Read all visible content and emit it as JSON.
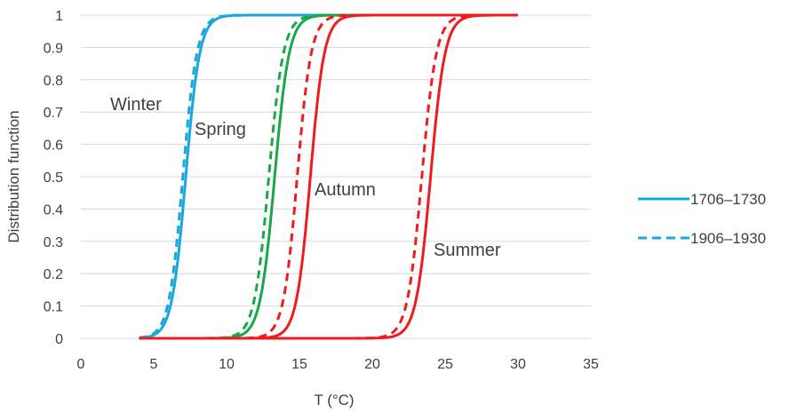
{
  "chart_data": {
    "type": "line",
    "title": "",
    "xlabel": "T (°C)",
    "ylabel": "Distribution function",
    "xlim": [
      0,
      35
    ],
    "ylim": [
      0,
      1
    ],
    "x_ticks": [
      "0",
      "5",
      "10",
      "15",
      "20",
      "25",
      "30",
      "35"
    ],
    "y_ticks": [
      "0",
      "0.1",
      "0.2",
      "0.3",
      "0.4",
      "0.5",
      "0.6",
      "0.7",
      "0.8",
      "0.9",
      "1"
    ],
    "grid": "horizontal",
    "legend_position": "right",
    "legend": [
      {
        "label": "1706–1730",
        "style": "solid"
      },
      {
        "label": "1906–1930",
        "style": "dashed"
      }
    ],
    "season_labels": [
      "Winter",
      "Spring",
      "Autumn",
      "Summer"
    ],
    "series": [
      {
        "season": "Winter",
        "period": "1706–1730",
        "style": "solid",
        "color": "#1aa7e0",
        "x_range": [
          4,
          30
        ],
        "median": 7.2,
        "spread": 0.48
      },
      {
        "season": "Winter",
        "period": "1906–1930",
        "style": "dashed",
        "color": "#1aa7e0",
        "x_range": [
          4,
          30
        ],
        "median": 7.0,
        "spread": 0.48
      },
      {
        "season": "Spring",
        "period": "1706–1730",
        "style": "solid",
        "color": "#18a84a",
        "x_range": [
          4,
          30
        ],
        "median": 13.3,
        "spread": 0.5
      },
      {
        "season": "Spring",
        "period": "1906–1930",
        "style": "dashed",
        "color": "#18a84a",
        "x_range": [
          4,
          30
        ],
        "median": 12.9,
        "spread": 0.5
      },
      {
        "season": "Autumn",
        "period": "1706–1730",
        "style": "solid",
        "color": "#ee1c1c",
        "x_range": [
          4,
          30
        ],
        "median": 15.75,
        "spread": 0.48
      },
      {
        "season": "Autumn",
        "period": "1906–1930",
        "style": "dashed",
        "color": "#ee1c1c",
        "x_range": [
          4,
          30
        ],
        "median": 14.85,
        "spread": 0.48
      },
      {
        "season": "Summer",
        "period": "1706–1730",
        "style": "solid",
        "color": "#ee1c1c",
        "x_range": [
          4,
          30
        ],
        "median": 24.0,
        "spread": 0.5
      },
      {
        "season": "Summer",
        "period": "1906–1930",
        "style": "dashed",
        "color": "#ee1c1c",
        "x_range": [
          4,
          30
        ],
        "median": 23.4,
        "spread": 0.5
      }
    ],
    "colors": {
      "winter": "#1aa7e0",
      "spring": "#18a84a",
      "autumn": "#ee1c1c",
      "summer": "#ee1c1c",
      "grid": "#d9d9d9",
      "text": "#404040"
    }
  }
}
